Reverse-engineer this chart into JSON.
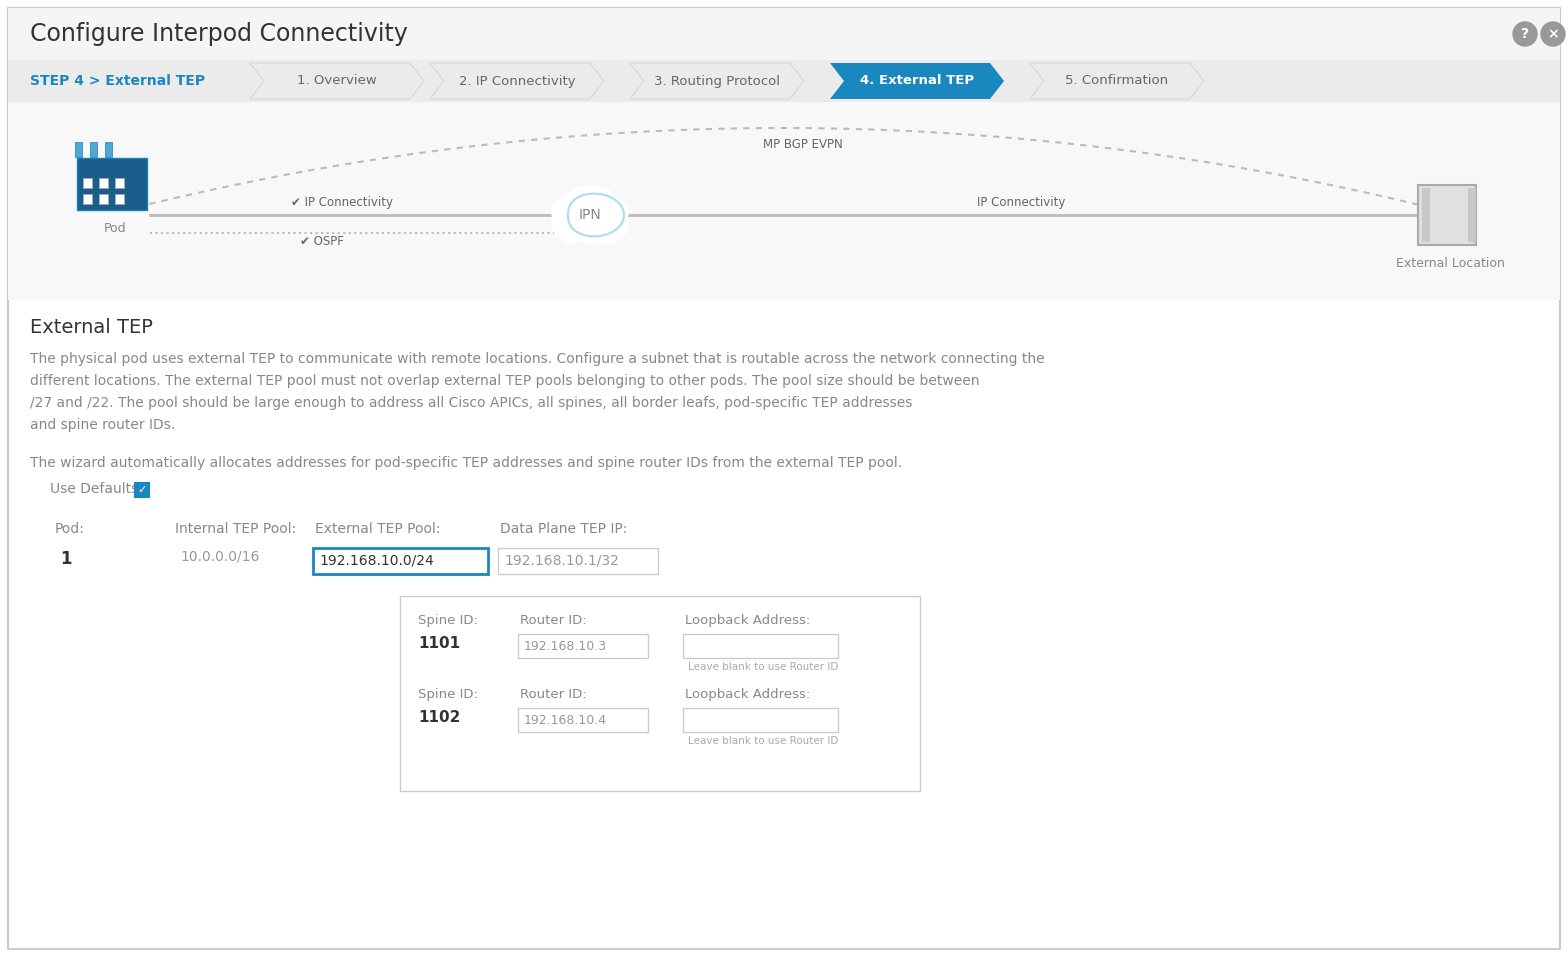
{
  "title": "Configure Interpod Connectivity",
  "step_label": "STEP 4 > External TEP",
  "step_label_color": "#1a87bf",
  "nav_steps": [
    "1. Overview",
    "2. IP Connectivity",
    "3. Routing Protocol",
    "4. External TEP",
    "5. Confirmation"
  ],
  "active_step": 3,
  "bg_color": "#ffffff",
  "active_step_color": "#1a87bf",
  "section_title": "External TEP",
  "description_line1": "The physical pod uses external TEP to communicate with remote locations. Configure a subnet that is routable across the network connecting the",
  "description_line2": "different locations. The external TEP pool must not overlap external TEP pools belonging to other pods. The pool size should be between",
  "description_line3": "/27 and /22. The pool should be large enough to address all Cisco APICs, all spines, all border leafs, pod-specific TEP addresses",
  "description_line4": "and spine router IDs.",
  "description_line5": "The wizard automatically allocates addresses for pod-specific TEP addresses and spine router IDs from the external TEP pool.",
  "use_defaults_label": "Use Defaults:",
  "col_pod": "Pod:",
  "col_internal": "Internal TEP Pool:",
  "col_external": "External TEP Pool:",
  "col_data_plane": "Data Plane TEP IP:",
  "pod_num": "1",
  "internal_tep": "10.0.0.0/16",
  "external_tep": "192.168.10.0/24",
  "data_plane_tep": "192.168.10.1/32",
  "spine1_id": "1101",
  "spine1_router_id": "192.168.10.3",
  "spine2_id": "1102",
  "spine2_router_id": "192.168.10.4",
  "loopback_placeholder": "Leave blank to use Router ID",
  "mpbgp_label": "MP BGP EVPN",
  "ipconn_label": "IP Connectivity",
  "ospf_label": "OSPF",
  "ipn_label": "IPN",
  "pod_label": "Pod",
  "ext_loc_label": "External Location",
  "gray_text": "#888888",
  "dark_text": "#333333",
  "medium_text": "#666666",
  "input_border_active": "#1a87bf",
  "input_border_normal": "#cccccc",
  "input_bg": "#ffffff",
  "checkbox_color": "#1a87bf"
}
